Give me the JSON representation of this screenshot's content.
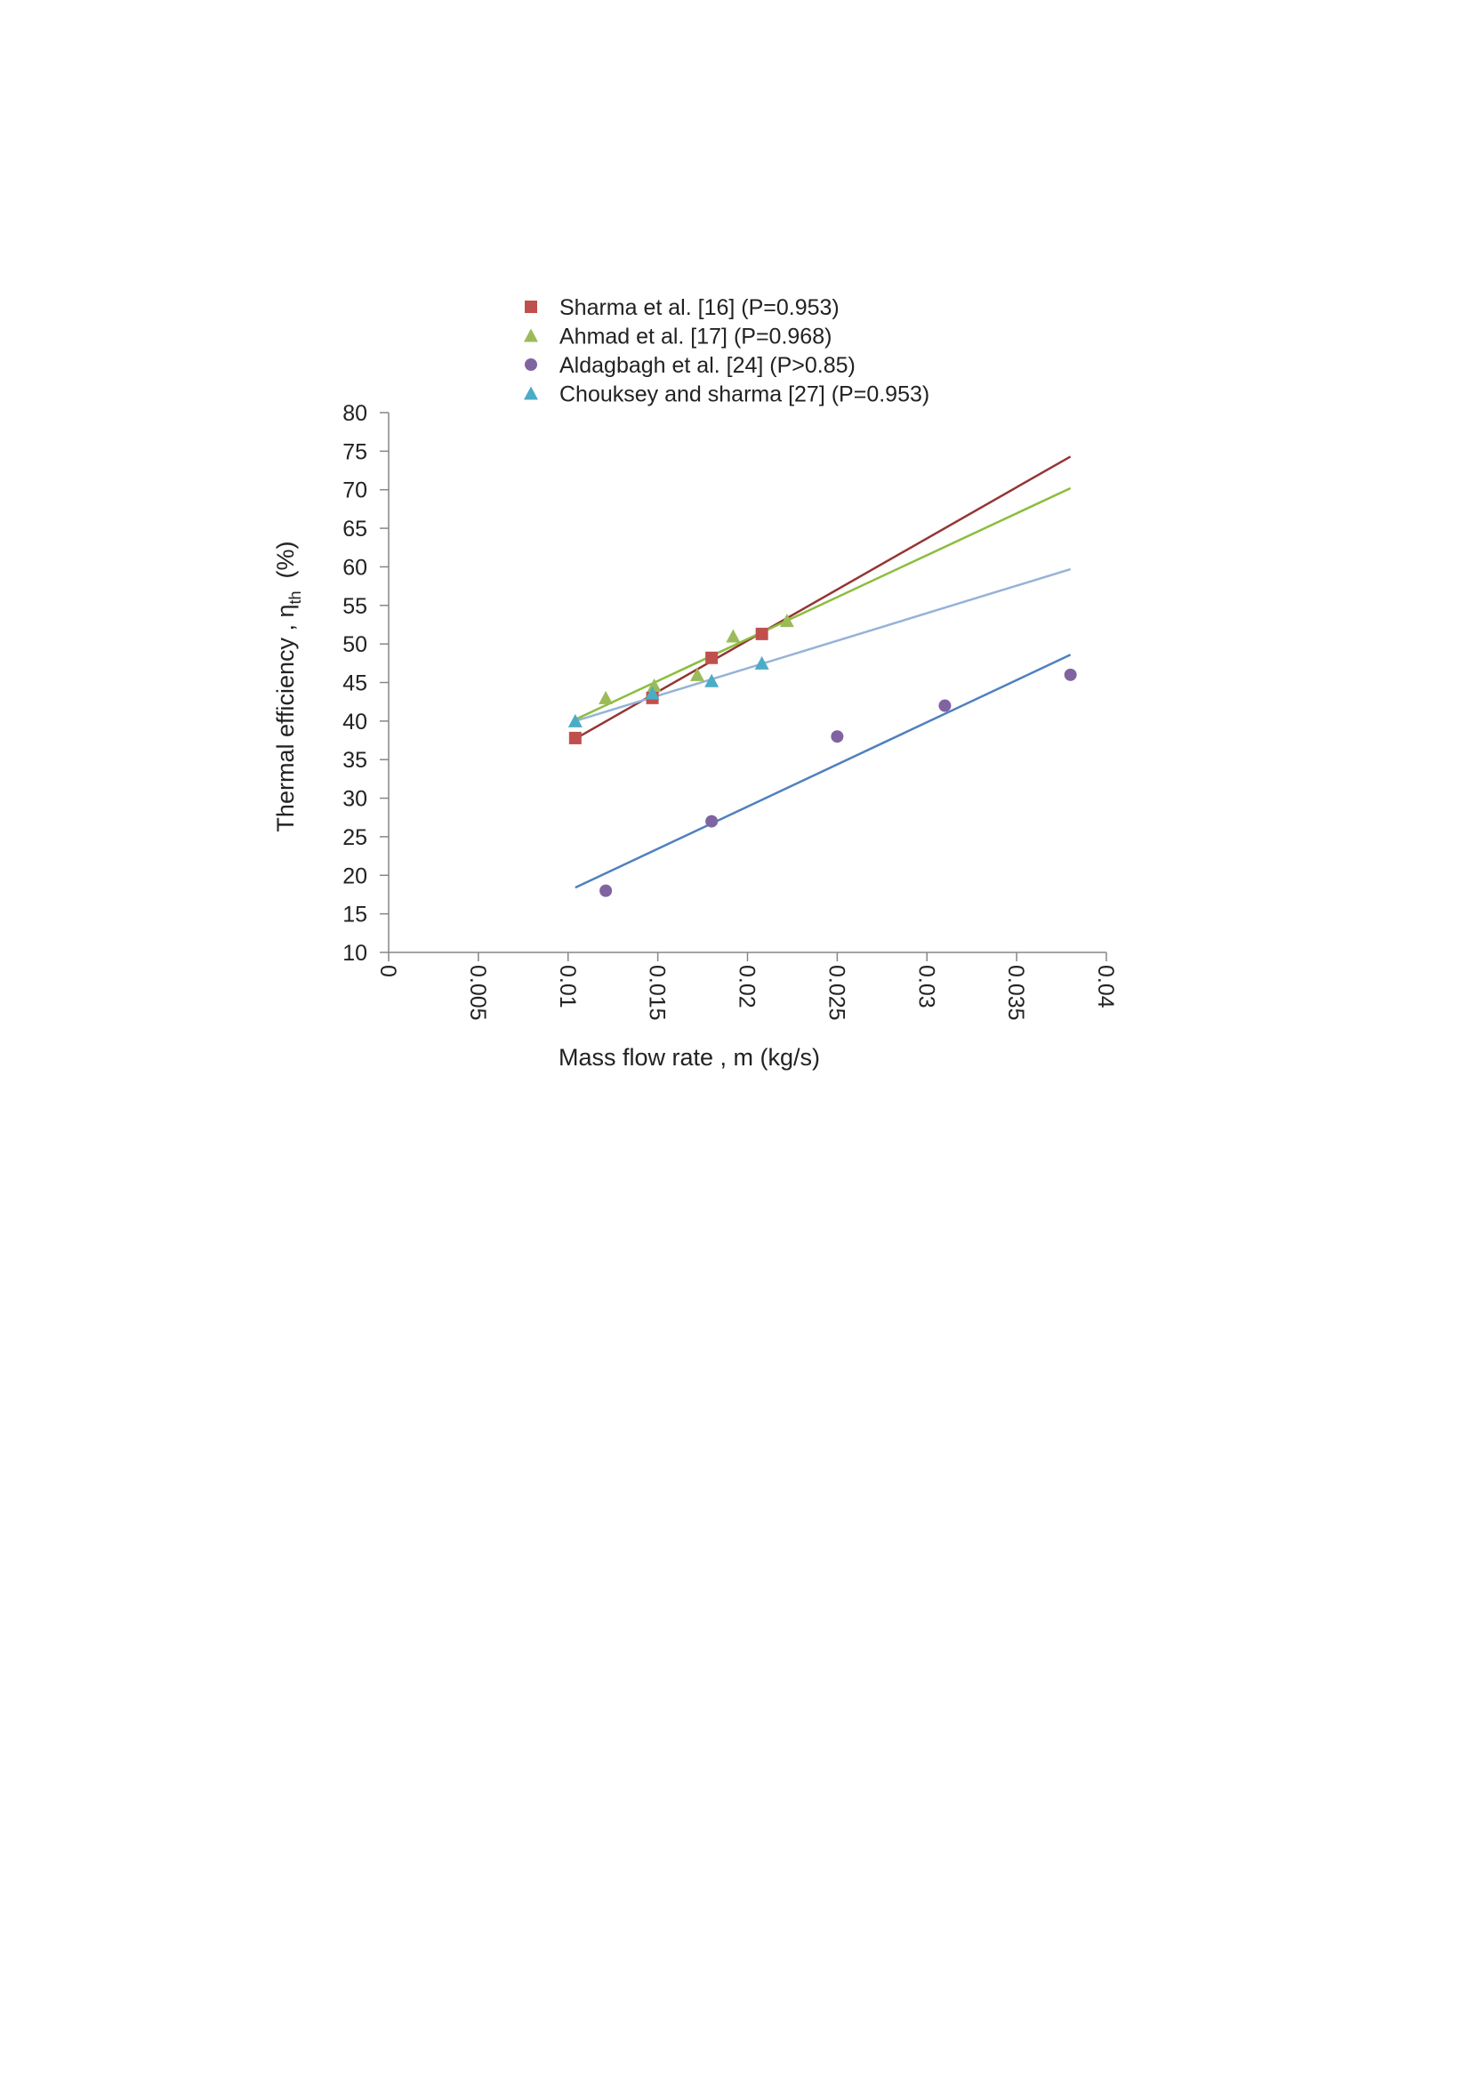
{
  "chart_data": {
    "type": "scatter",
    "xlabel": "Mass flow rate , m (kg/s)",
    "ylabel_main": "Thermal efficiency ,  η",
    "ylabel_sub": "th",
    "ylabel_unit": "(%)",
    "xlim": [
      0,
      0.04
    ],
    "ylim": [
      10,
      80
    ],
    "x_ticks": [
      "0",
      "0.005",
      "0.01",
      "0.015",
      "0.02",
      "0.025",
      "0.03",
      "0.035",
      "0.04"
    ],
    "y_ticks": [
      "10",
      "15",
      "20",
      "25",
      "30",
      "35",
      "40",
      "45",
      "50",
      "55",
      "60",
      "65",
      "70",
      "75",
      "80"
    ],
    "grid": false,
    "legend_position": "top",
    "series": [
      {
        "name": "Sharma et al. [16] (P=0.953)",
        "marker": "square",
        "marker_color": "#c0504d",
        "line_color": "#943634",
        "points": [
          [
            0.0104,
            37.8
          ],
          [
            0.0147,
            43.0
          ],
          [
            0.018,
            48.2
          ],
          [
            0.0208,
            51.3
          ]
        ],
        "trendline": [
          [
            0.0104,
            37.7
          ],
          [
            0.038,
            74.3
          ]
        ]
      },
      {
        "name": "Ahmad et al. [17] (P=0.968)",
        "marker": "triangle",
        "marker_color": "#9bbb59",
        "line_color": "#8cbd3d",
        "points": [
          [
            0.0121,
            43.0
          ],
          [
            0.0148,
            44.6
          ],
          [
            0.0172,
            46.0
          ],
          [
            0.0192,
            51.0
          ],
          [
            0.0222,
            53.0
          ]
        ],
        "trendline": [
          [
            0.0104,
            40.2
          ],
          [
            0.038,
            70.2
          ]
        ]
      },
      {
        "name": "Aldagbagh et al. [24] (P>0.85)",
        "marker": "circle",
        "marker_color": "#8064a2",
        "line_color": "#4f81bd",
        "points": [
          [
            0.0121,
            18.0
          ],
          [
            0.018,
            27.0
          ],
          [
            0.025,
            38.0
          ],
          [
            0.031,
            42.0
          ],
          [
            0.038,
            46.0
          ]
        ],
        "trendline": [
          [
            0.0104,
            18.4
          ],
          [
            0.038,
            48.6
          ]
        ]
      },
      {
        "name": "Chouksey and sharma [27] (P=0.953)",
        "marker": "triangle",
        "marker_color": "#4bacc6",
        "line_color": "#95b3d7",
        "points": [
          [
            0.0104,
            40.0
          ],
          [
            0.0147,
            43.6
          ],
          [
            0.018,
            45.2
          ],
          [
            0.0208,
            47.5
          ]
        ],
        "trendline": [
          [
            0.0104,
            40.0
          ],
          [
            0.038,
            59.7
          ]
        ]
      }
    ]
  }
}
